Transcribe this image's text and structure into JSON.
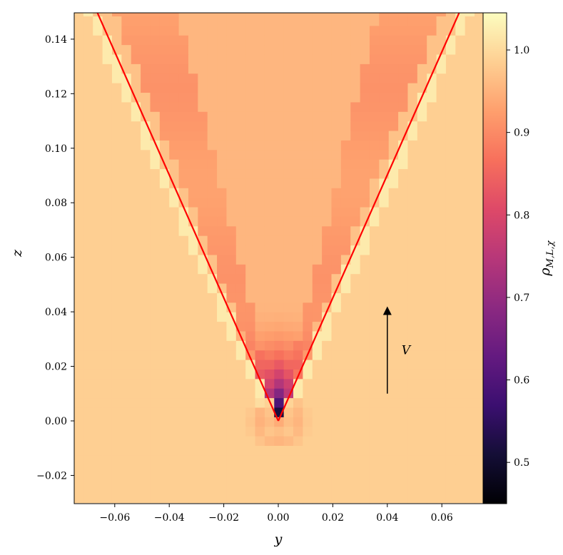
{
  "chart_data": {
    "type": "heatmap",
    "xlabel": "y",
    "ylabel": "z",
    "colorbar_label": "ρ_{M,L,χ}",
    "colorbar_label_main": "ρ",
    "colorbar_label_sub": "M,L,χ",
    "colormap": "magma",
    "xlim": [
      -0.075,
      0.075
    ],
    "ylim": [
      -0.03,
      0.15
    ],
    "clim": [
      0.45,
      1.045
    ],
    "x_ticks": [
      -0.06,
      -0.04,
      -0.02,
      0.0,
      0.02,
      0.04,
      0.06
    ],
    "x_tick_labels": [
      "−0.06",
      "−0.04",
      "−0.02",
      "0.00",
      "0.02",
      "0.04",
      "0.06"
    ],
    "y_ticks": [
      -0.02,
      0.0,
      0.02,
      0.04,
      0.06,
      0.08,
      0.1,
      0.12,
      0.14
    ],
    "y_tick_labels": [
      "−0.02",
      "0.00",
      "0.02",
      "0.04",
      "0.06",
      "0.08",
      "0.10",
      "0.12",
      "0.14"
    ],
    "colorbar_ticks": [
      0.5,
      0.6,
      0.7,
      0.8,
      0.9,
      1.0
    ],
    "colorbar_tick_labels": [
      "0.5",
      "0.6",
      "0.7",
      "0.8",
      "0.9",
      "1.0"
    ],
    "cone_lines": [
      {
        "color": "#ff0000",
        "points": [
          [
            -0.0665,
            0.15
          ],
          [
            0.0,
            0.0
          ]
        ]
      },
      {
        "color": "#ff0000",
        "points": [
          [
            0.0,
            0.0
          ],
          [
            0.0665,
            0.15
          ]
        ]
      }
    ],
    "arrow": {
      "x": 0.04,
      "y_start": 0.01,
      "y_end": 0.042,
      "label": "V"
    },
    "background_value": 0.985,
    "cone_interior_value": 0.955,
    "cone_edge_value": 0.92,
    "apex_min_value": 0.47,
    "grid": false
  }
}
